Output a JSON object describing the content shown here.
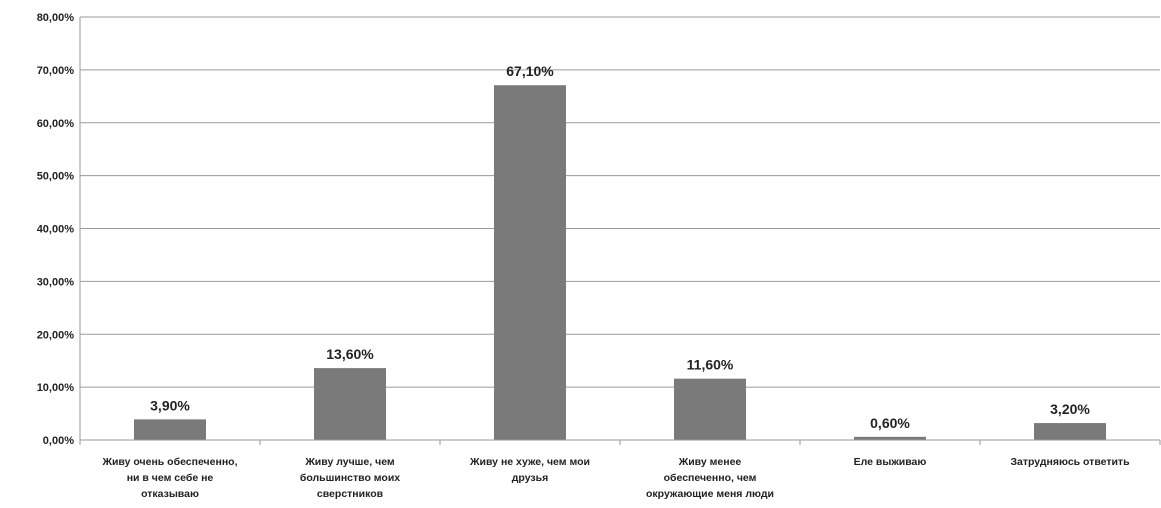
{
  "chart_data": {
    "type": "bar",
    "categories": [
      [
        "Живу очень обеспеченно,",
        "ни в чем себе не",
        "отказываю"
      ],
      [
        "Живу лучше, чем",
        "большинство моих",
        "сверстников"
      ],
      [
        "Живу не хуже, чем мои",
        "друзья"
      ],
      [
        "Живу менее",
        "обеспеченно, чем",
        "окружающие меня люди"
      ],
      [
        "Еле выживаю"
      ],
      [
        "Затрудняюсь ответить"
      ]
    ],
    "values": [
      3.9,
      13.6,
      67.1,
      11.6,
      0.6,
      3.2
    ],
    "data_labels": [
      "3,90%",
      "13,60%",
      "67,10%",
      "11,60%",
      "0,60%",
      "3,20%"
    ],
    "y_ticks": [
      "0,00%",
      "10,00%",
      "20,00%",
      "30,00%",
      "40,00%",
      "50,00%",
      "60,00%",
      "70,00%",
      "80,00%"
    ],
    "ylim": [
      0,
      80
    ],
    "grid": true,
    "legend": "none",
    "title": "",
    "xlabel": "",
    "ylabel": "",
    "colors": {
      "bar": "#7a7a7a",
      "grid": "#9a9a9a",
      "axis": "#9a9a9a",
      "text": "#222222"
    }
  }
}
